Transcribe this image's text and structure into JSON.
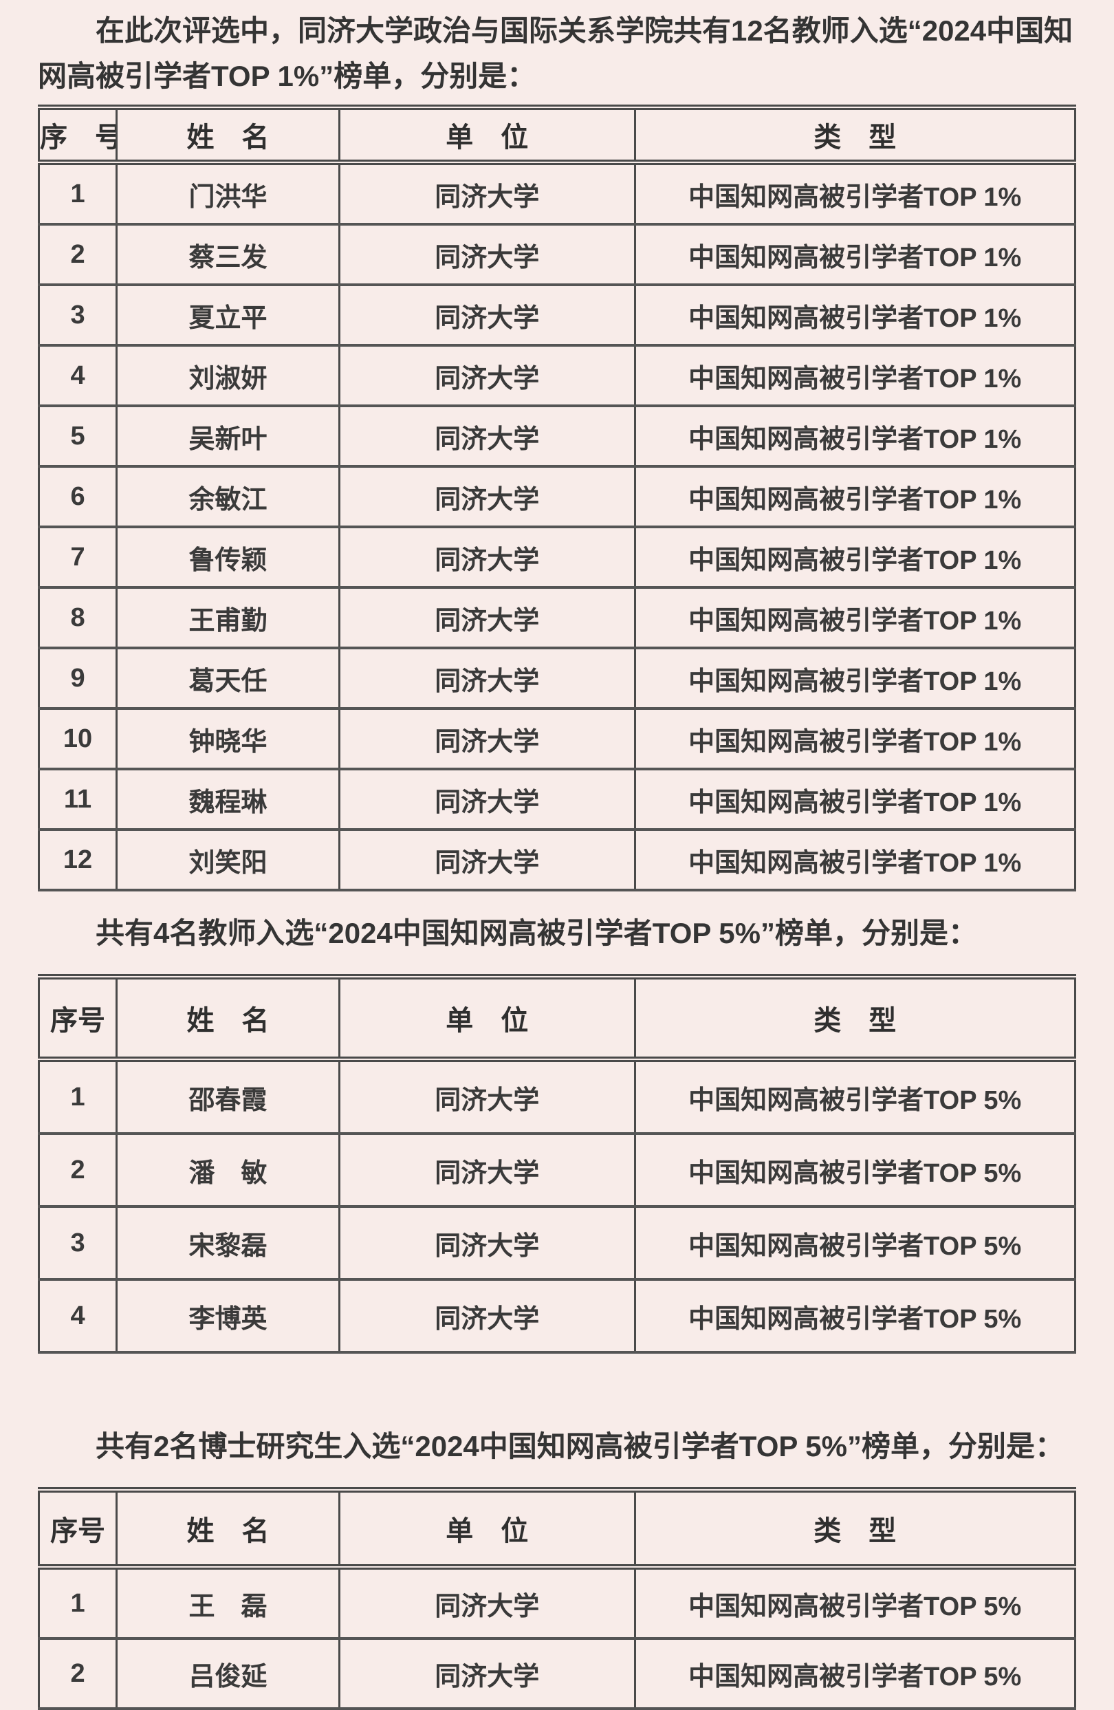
{
  "page": {
    "background_color": "#f8ece9",
    "border_color": "#4a4a4a",
    "text_color": "#3a3a3a"
  },
  "intro": {
    "text": "在此次评选中，同济大学政治与国际关系学院共有12名教师入选“2024中国知网高被引学者TOP 1%”榜单，分别是："
  },
  "tables": [
    {
      "headers": [
        "序　号",
        "姓　名",
        "单　位",
        "类　型"
      ],
      "rows": [
        [
          "1",
          "门洪华",
          "同济大学",
          "中国知网高被引学者TOP 1%"
        ],
        [
          "2",
          "蔡三发",
          "同济大学",
          "中国知网高被引学者TOP 1%"
        ],
        [
          "3",
          "夏立平",
          "同济大学",
          "中国知网高被引学者TOP 1%"
        ],
        [
          "4",
          "刘淑妍",
          "同济大学",
          "中国知网高被引学者TOP 1%"
        ],
        [
          "5",
          "吴新叶",
          "同济大学",
          "中国知网高被引学者TOP 1%"
        ],
        [
          "6",
          "余敏江",
          "同济大学",
          "中国知网高被引学者TOP 1%"
        ],
        [
          "7",
          "鲁传颖",
          "同济大学",
          "中国知网高被引学者TOP 1%"
        ],
        [
          "8",
          "王甫勤",
          "同济大学",
          "中国知网高被引学者TOP 1%"
        ],
        [
          "9",
          "葛天任",
          "同济大学",
          "中国知网高被引学者TOP 1%"
        ],
        [
          "10",
          "钟晓华",
          "同济大学",
          "中国知网高被引学者TOP 1%"
        ],
        [
          "11",
          "魏程琳",
          "同济大学",
          "中国知网高被引学者TOP 1%"
        ],
        [
          "12",
          "刘笑阳",
          "同济大学",
          "中国知网高被引学者TOP 1%"
        ]
      ]
    },
    {
      "heading": "共有4名教师入选“2024中国知网高被引学者TOP 5%”榜单，分别是：",
      "headers": [
        "序号",
        "姓　名",
        "单　位",
        "类　型"
      ],
      "rows": [
        [
          "1",
          "邵春霞",
          "同济大学",
          "中国知网高被引学者TOP 5%"
        ],
        [
          "2",
          "潘　敏",
          "同济大学",
          "中国知网高被引学者TOP 5%"
        ],
        [
          "3",
          "宋黎磊",
          "同济大学",
          "中国知网高被引学者TOP 5%"
        ],
        [
          "4",
          "李博英",
          "同济大学",
          "中国知网高被引学者TOP 5%"
        ]
      ]
    },
    {
      "heading": "共有2名博士研究生入选“2024中国知网高被引学者TOP 5%”榜单，分别是：",
      "headers": [
        "序号",
        "姓　名",
        "单　位",
        "类　型"
      ],
      "rows": [
        [
          "1",
          "王　磊",
          "同济大学",
          "中国知网高被引学者TOP 5%"
        ],
        [
          "2",
          "吕俊延",
          "同济大学",
          "中国知网高被引学者TOP 5%"
        ]
      ]
    }
  ]
}
